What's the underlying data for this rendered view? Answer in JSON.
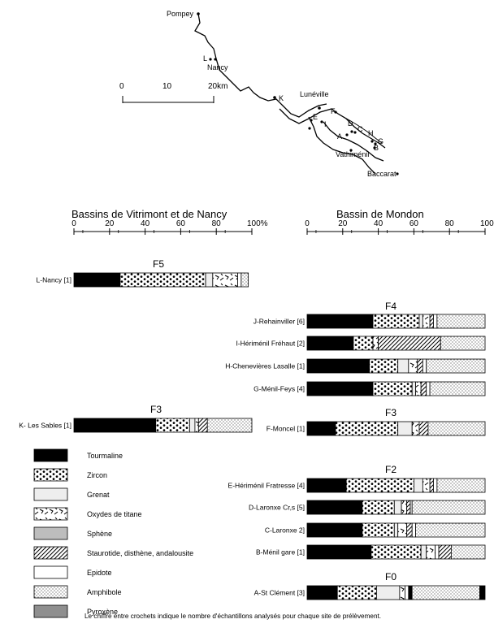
{
  "map": {
    "places": {
      "pompey": "Pompey",
      "nancy": "Nancy",
      "nancy_letter": "L",
      "luneville": "Lunéville",
      "vathimenil": "Vathiménil",
      "baccarat": "Baccarat",
      "k": "K",
      "f": "F",
      "e": "E",
      "i": "I",
      "d": "D",
      "c": "C",
      "a": "A",
      "h": "H",
      "g": "G",
      "b": "B"
    },
    "scale": {
      "ticks": [
        "0",
        "10",
        "20km"
      ]
    }
  },
  "headers": {
    "left": "Bassins de Vitrimont et de Nancy",
    "right": "Bassin de Mondon"
  },
  "legend": {
    "items": [
      {
        "key": "tourmaline",
        "label": "Tourmaline"
      },
      {
        "key": "zircon",
        "label": "Zircon"
      },
      {
        "key": "grenat",
        "label": "Grenat"
      },
      {
        "key": "oxydes",
        "label": "Oxydes de titane"
      },
      {
        "key": "sphene",
        "label": "Sphène"
      },
      {
        "key": "staurotide",
        "label": "Staurotide, disthène, andalousite"
      },
      {
        "key": "epidote",
        "label": "Epidote"
      },
      {
        "key": "amphibole",
        "label": "Amphibole"
      },
      {
        "key": "pyroxene",
        "label": "Pyroxène"
      }
    ]
  },
  "footnote": "Le chiffre entre crochets indique le nombre d'échantillons analysés pour chaque site de prélèvement.",
  "chart_data": [
    {
      "type": "bar",
      "orientation": "horizontal",
      "stacked": true,
      "panel": "left",
      "title": "Bassins de Vitrimont et de Nancy",
      "xlim": [
        0,
        100
      ],
      "xticks": [
        "0",
        "20",
        "40",
        "60",
        "80",
        "100%"
      ],
      "groups": [
        {
          "label": "F5",
          "rows": [
            {
              "name": "L-Nancy [1]",
              "segments": [
                {
                  "mineral": "tourmaline",
                  "value": 26
                },
                {
                  "mineral": "zircon",
                  "value": 48
                },
                {
                  "mineral": "grenat",
                  "value": 4
                },
                {
                  "mineral": "oxydes",
                  "value": 14
                },
                {
                  "mineral": "epidote",
                  "value": 2
                },
                {
                  "mineral": "amphibole",
                  "value": 4
                }
              ]
            }
          ]
        },
        {
          "label": "F3",
          "rows": [
            {
              "name": "K- Les Sables [1]",
              "segments": [
                {
                  "mineral": "tourmaline",
                  "value": 46
                },
                {
                  "mineral": "zircon",
                  "value": 19
                },
                {
                  "mineral": "grenat",
                  "value": 3
                },
                {
                  "mineral": "oxydes",
                  "value": 2
                },
                {
                  "mineral": "staurotide",
                  "value": 5
                },
                {
                  "mineral": "amphibole",
                  "value": 25
                }
              ]
            }
          ]
        }
      ]
    },
    {
      "type": "bar",
      "orientation": "horizontal",
      "stacked": true,
      "panel": "right",
      "title": "Bassin de Mondon",
      "xlim": [
        0,
        100
      ],
      "xticks": [
        "0",
        "20",
        "40",
        "60",
        "80",
        "100%"
      ],
      "groups": [
        {
          "label": "F4",
          "rows": [
            {
              "name": "J-Rehainviller [6]",
              "segments": [
                {
                  "mineral": "tourmaline",
                  "value": 37
                },
                {
                  "mineral": "zircon",
                  "value": 26
                },
                {
                  "mineral": "grenat",
                  "value": 2
                },
                {
                  "mineral": "oxydes",
                  "value": 4
                },
                {
                  "mineral": "staurotide",
                  "value": 2
                },
                {
                  "mineral": "epidote",
                  "value": 2
                },
                {
                  "mineral": "amphibole",
                  "value": 27
                }
              ]
            },
            {
              "name": "I-Hériménil Fréhaut [2]",
              "segments": [
                {
                  "mineral": "tourmaline",
                  "value": 26
                },
                {
                  "mineral": "zircon",
                  "value": 11
                },
                {
                  "mineral": "oxydes",
                  "value": 3
                },
                {
                  "mineral": "staurotide",
                  "value": 35
                },
                {
                  "mineral": "amphibole",
                  "value": 25
                }
              ]
            },
            {
              "name": "H-Chenevières Lasalle [1]",
              "segments": [
                {
                  "mineral": "tourmaline",
                  "value": 35
                },
                {
                  "mineral": "zircon",
                  "value": 16
                },
                {
                  "mineral": "grenat",
                  "value": 6
                },
                {
                  "mineral": "oxydes",
                  "value": 5
                },
                {
                  "mineral": "staurotide",
                  "value": 3
                },
                {
                  "mineral": "epidote",
                  "value": 2
                },
                {
                  "mineral": "amphibole",
                  "value": 33
                }
              ]
            },
            {
              "name": "G-Ménil-Feys [4]",
              "segments": [
                {
                  "mineral": "tourmaline",
                  "value": 37
                },
                {
                  "mineral": "zircon",
                  "value": 22
                },
                {
                  "mineral": "grenat",
                  "value": 2
                },
                {
                  "mineral": "oxydes",
                  "value": 3
                },
                {
                  "mineral": "staurotide",
                  "value": 3
                },
                {
                  "mineral": "epidote",
                  "value": 2
                },
                {
                  "mineral": "amphibole",
                  "value": 31
                }
              ]
            }
          ]
        },
        {
          "label": "F3",
          "rows": [
            {
              "name": "F-Moncel [1]",
              "segments": [
                {
                  "mineral": "tourmaline",
                  "value": 16
                },
                {
                  "mineral": "zircon",
                  "value": 35
                },
                {
                  "mineral": "grenat",
                  "value": 8
                },
                {
                  "mineral": "oxydes",
                  "value": 4
                },
                {
                  "mineral": "staurotide",
                  "value": 5
                },
                {
                  "mineral": "amphibole",
                  "value": 32
                }
              ]
            }
          ]
        },
        {
          "label": "F2",
          "rows": [
            {
              "name": "E-Hériménil Fratresse [4]",
              "segments": [
                {
                  "mineral": "tourmaline",
                  "value": 22
                },
                {
                  "mineral": "zircon",
                  "value": 38
                },
                {
                  "mineral": "grenat",
                  "value": 5
                },
                {
                  "mineral": "oxydes",
                  "value": 4
                },
                {
                  "mineral": "staurotide",
                  "value": 2
                },
                {
                  "mineral": "epidote",
                  "value": 2
                },
                {
                  "mineral": "amphibole",
                  "value": 27
                }
              ]
            },
            {
              "name": "D-Laronxe Cr,s [5]",
              "segments": [
                {
                  "mineral": "tourmaline",
                  "value": 31
                },
                {
                  "mineral": "zircon",
                  "value": 18
                },
                {
                  "mineral": "grenat",
                  "value": 4
                },
                {
                  "mineral": "oxydes",
                  "value": 3
                },
                {
                  "mineral": "staurotide",
                  "value": 2
                },
                {
                  "mineral": "epidote",
                  "value": 1
                },
                {
                  "mineral": "amphibole",
                  "value": 41
                }
              ]
            },
            {
              "name": "C-Laronxe 2]",
              "segments": [
                {
                  "mineral": "tourmaline",
                  "value": 31
                },
                {
                  "mineral": "zircon",
                  "value": 18
                },
                {
                  "mineral": "grenat",
                  "value": 2
                },
                {
                  "mineral": "oxydes",
                  "value": 5
                },
                {
                  "mineral": "staurotide",
                  "value": 3
                },
                {
                  "mineral": "epidote",
                  "value": 2
                },
                {
                  "mineral": "amphibole",
                  "value": 39
                }
              ]
            },
            {
              "name": "B-Ménil gare [1]",
              "segments": [
                {
                  "mineral": "tourmaline",
                  "value": 36
                },
                {
                  "mineral": "zircon",
                  "value": 28
                },
                {
                  "mineral": "grenat",
                  "value": 3
                },
                {
                  "mineral": "oxydes",
                  "value": 5
                },
                {
                  "mineral": "epidote",
                  "value": 2
                },
                {
                  "mineral": "staurotide",
                  "value": 7
                },
                {
                  "mineral": "amphibole",
                  "value": 19
                }
              ]
            }
          ]
        },
        {
          "label": "F0",
          "rows": [
            {
              "name": "A-St Clément [3]",
              "segments": [
                {
                  "mineral": "tourmaline",
                  "value": 17
                },
                {
                  "mineral": "zircon",
                  "value": 22
                },
                {
                  "mineral": "grenat",
                  "value": 13
                },
                {
                  "mineral": "oxydes",
                  "value": 3
                },
                {
                  "mineral": "epidote",
                  "value": 2
                },
                {
                  "mineral": "tourmaline",
                  "value": 2
                },
                {
                  "mineral": "amphibole",
                  "value": 38
                },
                {
                  "mineral": "tourmaline",
                  "value": 3
                }
              ]
            }
          ]
        }
      ]
    }
  ]
}
